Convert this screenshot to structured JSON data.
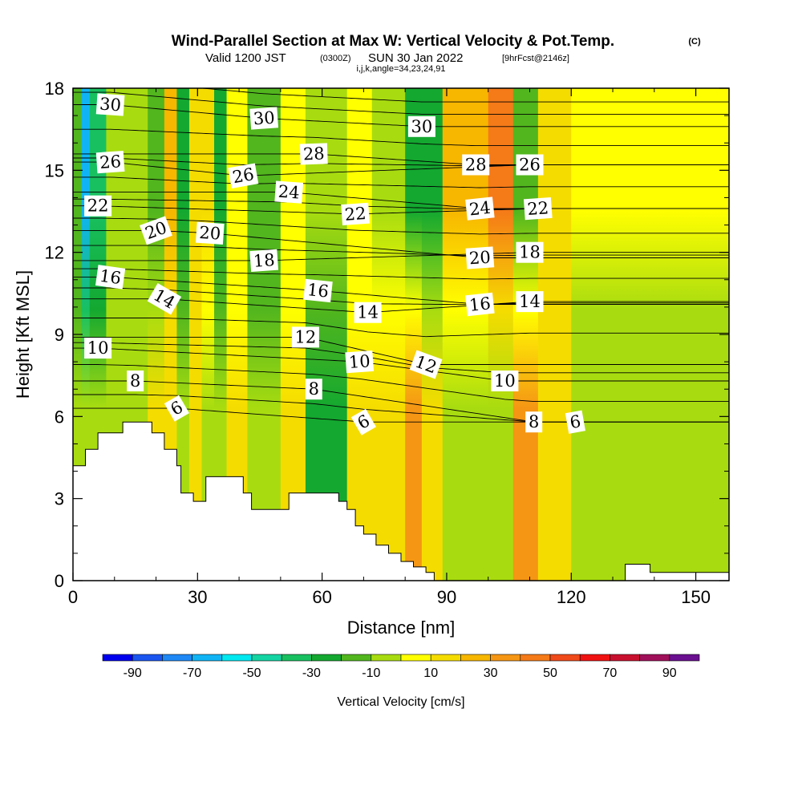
{
  "chart_data": {
    "type": "heatmap",
    "title": "Wind-Parallel Section at Max W: Vertical Velocity & Pot.Temp.",
    "title_mark": "(C)",
    "subtitle": {
      "prefix": "Valid 1200 JST",
      "utc": "(0300Z)",
      "date": "SUN 30 Jan 2022",
      "forecast": "[9hrFcst@2146z]"
    },
    "subtitle2": "i,j,k,angle=34,23,24,91",
    "xlabel": "Distance [nm]",
    "ylabel": "Height [Kft MSL]",
    "xlim": [
      0,
      158
    ],
    "ylim": [
      0,
      18
    ],
    "x_ticks": [
      0,
      30,
      60,
      90,
      120,
      150
    ],
    "y_ticks": [
      0,
      3,
      6,
      9,
      12,
      15,
      18
    ],
    "colorbar": {
      "label": "Vertical Velocity [cm/s]",
      "ticks": [
        -90,
        -70,
        -50,
        -30,
        -10,
        10,
        30,
        50,
        70,
        90
      ],
      "bins": [
        {
          "range": [
            -100,
            -90
          ],
          "color": "#0000ee"
        },
        {
          "range": [
            -90,
            -80
          ],
          "color": "#1a55f0"
        },
        {
          "range": [
            -80,
            -70
          ],
          "color": "#1e88f5"
        },
        {
          "range": [
            -70,
            -60
          ],
          "color": "#10b4f5"
        },
        {
          "range": [
            -60,
            -50
          ],
          "color": "#00e8f0"
        },
        {
          "range": [
            -50,
            -40
          ],
          "color": "#14d4a4"
        },
        {
          "range": [
            -40,
            -30
          ],
          "color": "#18c060"
        },
        {
          "range": [
            -30,
            -20
          ],
          "color": "#14a830"
        },
        {
          "range": [
            -20,
            -10
          ],
          "color": "#52b61e"
        },
        {
          "range": [
            -10,
            0
          ],
          "color": "#a8dc10"
        },
        {
          "range": [
            0,
            10
          ],
          "color": "#ffff00"
        },
        {
          "range": [
            10,
            20
          ],
          "color": "#f5dc00"
        },
        {
          "range": [
            20,
            30
          ],
          "color": "#f7b600"
        },
        {
          "range": [
            30,
            40
          ],
          "color": "#f59614"
        },
        {
          "range": [
            40,
            50
          ],
          "color": "#f57a18"
        },
        {
          "range": [
            50,
            60
          ],
          "color": "#f04a1a"
        },
        {
          "range": [
            60,
            70
          ],
          "color": "#f01212"
        },
        {
          "range": [
            70,
            80
          ],
          "color": "#c8102e"
        },
        {
          "range": [
            80,
            90
          ],
          "color": "#a0105a"
        },
        {
          "range": [
            90,
            100
          ],
          "color": "#6a1090"
        }
      ]
    },
    "vertical_velocity_columns": [
      {
        "x": [
          0,
          2
        ],
        "w_lower": -10,
        "w_upper": -20
      },
      {
        "x": [
          2,
          4
        ],
        "w_lower": -10,
        "w_upper": -70
      },
      {
        "x": [
          4,
          8
        ],
        "w_lower": -10,
        "w_upper": -40
      },
      {
        "x": [
          8,
          18
        ],
        "w_lower": -10,
        "w_upper": -10
      },
      {
        "x": [
          18,
          22
        ],
        "w_lower": 10,
        "w_upper": -20
      },
      {
        "x": [
          22,
          25
        ],
        "w_lower": 10,
        "w_upper": 25
      },
      {
        "x": [
          25,
          28
        ],
        "w_lower": -10,
        "w_upper": -25
      },
      {
        "x": [
          28,
          31
        ],
        "w_lower": 10,
        "w_upper": 15
      },
      {
        "x": [
          31,
          34
        ],
        "w_lower": -10,
        "w_upper": 15
      },
      {
        "x": [
          34,
          37
        ],
        "w_lower": -10,
        "w_upper": -30
      },
      {
        "x": [
          37,
          42
        ],
        "w_lower": 10,
        "w_upper": 5
      },
      {
        "x": [
          42,
          50
        ],
        "w_lower": -10,
        "w_upper": -15
      },
      {
        "x": [
          50,
          56
        ],
        "w_lower": 10,
        "w_upper": 5
      },
      {
        "x": [
          56,
          66
        ],
        "w_lower": -30,
        "w_upper": -10
      },
      {
        "x": [
          66,
          72
        ],
        "w_lower": 10,
        "w_upper": 5
      },
      {
        "x": [
          72,
          80
        ],
        "w_lower": 10,
        "w_upper": -5
      },
      {
        "x": [
          80,
          84
        ],
        "w_lower": 30,
        "w_upper": -30
      },
      {
        "x": [
          84,
          89
        ],
        "w_lower": 10,
        "w_upper": -25
      },
      {
        "x": [
          89,
          100
        ],
        "w_lower": -10,
        "w_upper": 25
      },
      {
        "x": [
          100,
          106
        ],
        "w_lower": -10,
        "w_upper": 45
      },
      {
        "x": [
          106,
          112
        ],
        "w_lower": 30,
        "w_upper": -20
      },
      {
        "x": [
          112,
          120
        ],
        "w_lower": 10,
        "w_upper": 15
      },
      {
        "x": [
          120,
          130
        ],
        "w_lower": -10,
        "w_upper": 5
      },
      {
        "x": [
          130,
          150
        ],
        "w_lower": -10,
        "w_upper": 5
      },
      {
        "x": [
          150,
          158
        ],
        "w_lower": -10,
        "w_upper": 5
      }
    ],
    "terrain": {
      "x": [
        0,
        3,
        3,
        6,
        6,
        12,
        12,
        19,
        19,
        22,
        22,
        25,
        25,
        26,
        26,
        29,
        29,
        32,
        32,
        41,
        41,
        43,
        43,
        52,
        52,
        56,
        56,
        64,
        64,
        66,
        66,
        68,
        68,
        70,
        70,
        73,
        73,
        76,
        76,
        79,
        79,
        82,
        82,
        85,
        85,
        87,
        87,
        89,
        89,
        133,
        133,
        139,
        139,
        158
      ],
      "y": [
        4.2,
        4.2,
        4.8,
        4.8,
        5.4,
        5.4,
        5.8,
        5.8,
        5.4,
        5.4,
        4.8,
        4.8,
        4.2,
        4.2,
        3.2,
        3.2,
        2.9,
        2.9,
        3.8,
        3.8,
        3.2,
        3.2,
        2.6,
        2.6,
        3.2,
        3.2,
        3.2,
        3.2,
        2.9,
        2.9,
        2.6,
        2.6,
        2.0,
        2.0,
        1.7,
        1.7,
        1.3,
        1.3,
        1.0,
        1.0,
        0.7,
        0.7,
        0.5,
        0.5,
        0.3,
        0.3,
        0.0,
        0.0,
        0.0,
        0.0,
        0.6,
        0.6,
        0.3,
        0.3
      ]
    },
    "potential_temperature_contours": {
      "levels_labeled": [
        6,
        8,
        10,
        12,
        14,
        16,
        18,
        20,
        22,
        24,
        26,
        28,
        30
      ],
      "labels": [
        {
          "value": 30,
          "x": 9,
          "y": 17.4,
          "angle": 4
        },
        {
          "value": 26,
          "x": 9,
          "y": 15.3,
          "angle": -4
        },
        {
          "value": 22,
          "x": 6,
          "y": 13.7,
          "angle": 0
        },
        {
          "value": 16,
          "x": 9,
          "y": 11.1,
          "angle": 8
        },
        {
          "value": 10,
          "x": 6,
          "y": 8.5,
          "angle": 0
        },
        {
          "value": 8,
          "x": 15,
          "y": 7.3,
          "angle": 0
        },
        {
          "value": 6,
          "x": 25,
          "y": 6.3,
          "angle": -30
        },
        {
          "value": 20,
          "x": 20,
          "y": 12.8,
          "angle": -20
        },
        {
          "value": 14,
          "x": 22,
          "y": 10.3,
          "angle": 30
        },
        {
          "value": 20,
          "x": 33,
          "y": 12.7,
          "angle": 4
        },
        {
          "value": 26,
          "x": 41,
          "y": 14.8,
          "angle": -10
        },
        {
          "value": 30,
          "x": 46,
          "y": 16.9,
          "angle": -4
        },
        {
          "value": 18,
          "x": 46,
          "y": 11.7,
          "angle": -4
        },
        {
          "value": 24,
          "x": 52,
          "y": 14.2,
          "angle": 4
        },
        {
          "value": 28,
          "x": 58,
          "y": 15.6,
          "angle": -2
        },
        {
          "value": 12,
          "x": 56,
          "y": 8.9,
          "angle": 0
        },
        {
          "value": 16,
          "x": 59,
          "y": 10.6,
          "angle": 6
        },
        {
          "value": 8,
          "x": 58,
          "y": 7.0,
          "angle": 0
        },
        {
          "value": 22,
          "x": 68,
          "y": 13.4,
          "angle": -4
        },
        {
          "value": 10,
          "x": 69,
          "y": 8.0,
          "angle": -4
        },
        {
          "value": 14,
          "x": 71,
          "y": 9.8,
          "angle": 0
        },
        {
          "value": 6,
          "x": 70,
          "y": 5.8,
          "angle": -30
        },
        {
          "value": 30,
          "x": 84,
          "y": 16.6,
          "angle": 0
        },
        {
          "value": 12,
          "x": 85,
          "y": 7.9,
          "angle": 20
        },
        {
          "value": 28,
          "x": 97,
          "y": 15.2,
          "angle": 0
        },
        {
          "value": 24,
          "x": 98,
          "y": 13.6,
          "angle": -6
        },
        {
          "value": 20,
          "x": 98,
          "y": 11.8,
          "angle": -4
        },
        {
          "value": 16,
          "x": 98,
          "y": 10.1,
          "angle": -6
        },
        {
          "value": 10,
          "x": 104,
          "y": 7.3,
          "angle": 0
        },
        {
          "value": 26,
          "x": 110,
          "y": 15.2,
          "angle": 0
        },
        {
          "value": 22,
          "x": 112,
          "y": 13.6,
          "angle": -4
        },
        {
          "value": 18,
          "x": 110,
          "y": 12.0,
          "angle": 0
        },
        {
          "value": 14,
          "x": 110,
          "y": 10.2,
          "angle": 0
        },
        {
          "value": 8,
          "x": 111,
          "y": 5.8,
          "angle": 0
        },
        {
          "value": 6,
          "x": 121,
          "y": 5.8,
          "angle": -10
        }
      ]
    },
    "grid": false
  }
}
